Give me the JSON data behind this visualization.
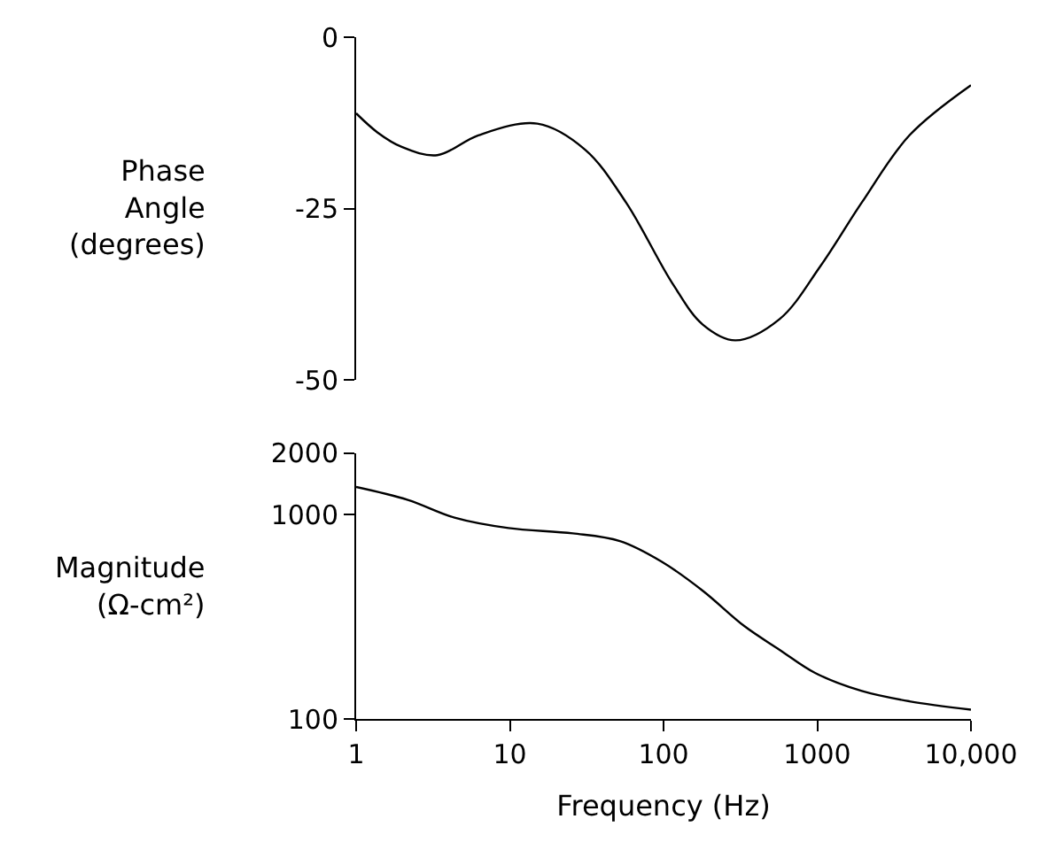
{
  "chart_data": [
    {
      "type": "line",
      "ylabel": "Phase\nAngle\n(degrees)",
      "x": [
        1,
        1.38,
        1.98,
        3.37,
        6.24,
        15.1,
        30.9,
        57,
        115,
        180,
        293,
        569,
        1047,
        1950,
        3981,
        10000
      ],
      "series": [
        {
          "color": "#000000",
          "values": [
            -11.1,
            -13.9,
            -16.0,
            -17.2,
            -14.3,
            -12.6,
            -16.4,
            -24.1,
            -36.0,
            -41.9,
            -44.2,
            -41.1,
            -33.4,
            -24.1,
            -14.3,
            -7.0
          ]
        }
      ],
      "log": "x",
      "xlim": [
        1,
        10000
      ],
      "ylim": [
        -50,
        0
      ],
      "yticks": [
        0,
        -25,
        -50
      ],
      "tick_labels": "y",
      "marker": "none",
      "line_style": "solid"
    },
    {
      "type": "line",
      "ylabel": "Magnitude\n(Ω-cm²)",
      "xlabel": "Frequency (Hz)",
      "x": [
        1,
        2.17,
        4.37,
        9.8,
        25.7,
        52,
        97,
        180,
        335,
        569,
        968,
        1950,
        3981,
        10000
      ],
      "series": [
        {
          "color": "#000000",
          "values": [
            1365,
            1180,
            966,
            859,
            809,
            742,
            589,
            424,
            285,
            218,
            168,
            137,
            122,
            111
          ]
        }
      ],
      "log": "xy",
      "xlim": [
        1,
        10000
      ],
      "xticks": [
        1,
        10,
        100,
        1000,
        {
          "value": 10000,
          "label": "10,000"
        }
      ],
      "ylim": [
        100,
        2000
      ],
      "yticks": [
        100,
        1000,
        2000
      ],
      "marker": "none",
      "line_style": "solid"
    }
  ]
}
